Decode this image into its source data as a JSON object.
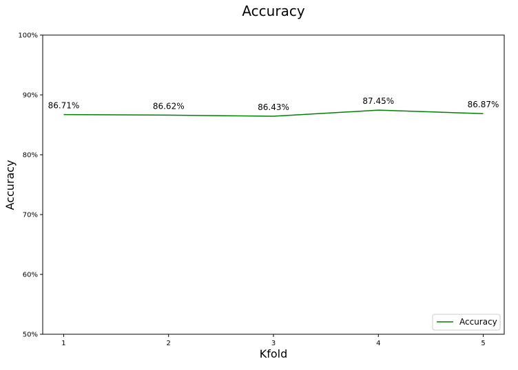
{
  "chart_data": {
    "type": "line",
    "title": "Accuracy",
    "xlabel": "Kfold",
    "ylabel": "Accuracy",
    "x": [
      1,
      2,
      3,
      4,
      5
    ],
    "series": [
      {
        "name": "Accuracy",
        "values": [
          86.71,
          86.62,
          86.43,
          87.45,
          86.87
        ],
        "color": "#008000"
      }
    ],
    "data_labels": [
      "86.71%",
      "86.62%",
      "86.43%",
      "87.45%",
      "86.87%"
    ],
    "ylim": [
      50,
      100
    ],
    "xlim": [
      0.8,
      5.2
    ],
    "y_ticks": [
      50,
      60,
      70,
      80,
      90,
      100
    ],
    "y_tick_labels": [
      "50%",
      "60%",
      "70%",
      "80%",
      "90%",
      "100%"
    ],
    "x_ticks": [
      1,
      2,
      3,
      4,
      5
    ],
    "x_tick_labels": [
      "1",
      "2",
      "3",
      "4",
      "5"
    ],
    "grid": false,
    "legend": "lower-right"
  }
}
